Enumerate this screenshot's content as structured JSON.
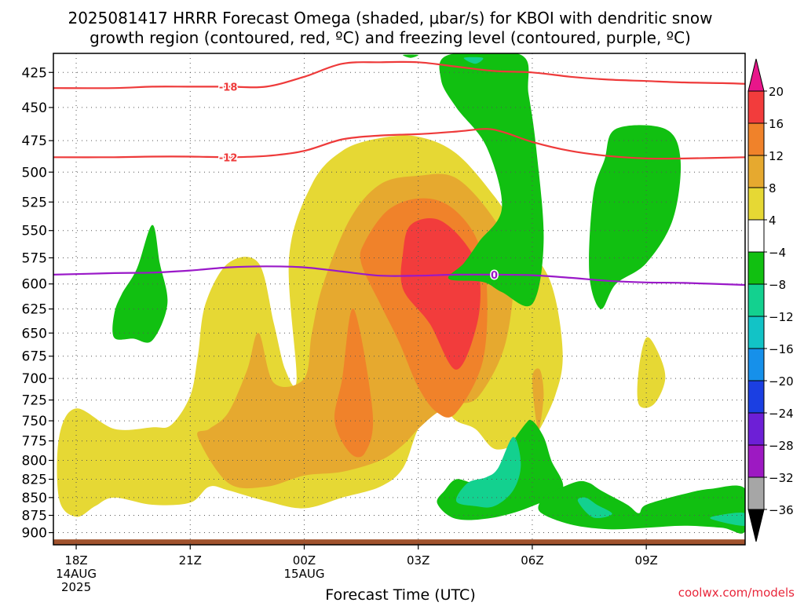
{
  "chart_data": {
    "type": "heatmap",
    "title_line1": "2025081417 HRRR Forecast Omega (shaded, μbar/s) for KBOI with dendritic snow",
    "title_line2": "growth region (contoured, red, ºC) and freezing level (contoured, purple, ºC)",
    "xlabel": "Forecast Time (UTC)",
    "credit": "coolwx.com/models",
    "x_ticks": [
      {
        "t": 0,
        "lines": [
          "18Z",
          "14AUG",
          "2025"
        ]
      },
      {
        "t": 3,
        "lines": [
          "21Z"
        ]
      },
      {
        "t": 6,
        "lines": [
          "00Z",
          "15AUG"
        ]
      },
      {
        "t": 9,
        "lines": [
          "03Z"
        ]
      },
      {
        "t": 12,
        "lines": [
          "06Z"
        ]
      },
      {
        "t": 15,
        "lines": [
          "09Z"
        ]
      }
    ],
    "xlim_hours": [
      -0.6,
      17.6
    ],
    "y_ticks": [
      "425",
      "450",
      "475",
      "500",
      "525",
      "550",
      "575",
      "600",
      "625",
      "650",
      "675",
      "700",
      "725",
      "750",
      "775",
      "800",
      "825",
      "850",
      "875",
      "900"
    ],
    "y_scale": "log-pressure",
    "ylim_hPa": [
      412,
      918
    ],
    "grid": "dotted",
    "colorbar": {
      "labels": [
        "20",
        "16",
        "12",
        "8",
        "4",
        "−4",
        "−8",
        "−12",
        "−16",
        "−20",
        "−24",
        "−28",
        "−32",
        "−36"
      ],
      "colors": [
        "#e8168a",
        "#f23c3c",
        "#f0822a",
        "#e6a92f",
        "#e6d834",
        "#ffffff",
        "#11c011",
        "#13d18f",
        "#12c3c6",
        "#1690ea",
        "#1b3fe2",
        "#6d1fd6",
        "#9d19c2",
        "#a6a6a6",
        "#000000"
      ]
    },
    "shading_colors": {
      "w4": "#e6d834",
      "w8": "#e6a92f",
      "w12": "#f0822a",
      "w16": "#f23c3c",
      "g4": "#11c011",
      "g8": "#13d18f",
      "ground": "#a0522d"
    },
    "contour_colors": {
      "dgz": "#ee3a3a",
      "freezing": "#9a19c8"
    },
    "dgz_contours": [
      {
        "label": "-18",
        "label_t": 4.0,
        "points": [
          [
            -0.6,
            436
          ],
          [
            1,
            436
          ],
          [
            2,
            435
          ],
          [
            3,
            435
          ],
          [
            4,
            435
          ],
          [
            5,
            435
          ],
          [
            6,
            428
          ],
          [
            7,
            419
          ],
          [
            8,
            418
          ],
          [
            9,
            418
          ],
          [
            10,
            421
          ],
          [
            11,
            424
          ],
          [
            12,
            425
          ],
          [
            13,
            428
          ],
          [
            14,
            430
          ],
          [
            15,
            431
          ],
          [
            16,
            432
          ],
          [
            17,
            432.5
          ],
          [
            17.6,
            433
          ]
        ]
      },
      {
        "label": "-12",
        "label_t": 4.0,
        "points": [
          [
            -0.6,
            488
          ],
          [
            1,
            488
          ],
          [
            2,
            487.5
          ],
          [
            3,
            487.5
          ],
          [
            4,
            488
          ],
          [
            5,
            487
          ],
          [
            6,
            483
          ],
          [
            7,
            474
          ],
          [
            8,
            471
          ],
          [
            9,
            470
          ],
          [
            10,
            468
          ],
          [
            10.8,
            466
          ],
          [
            11.3,
            469
          ],
          [
            12,
            476
          ],
          [
            13,
            483
          ],
          [
            14,
            487
          ],
          [
            15,
            489
          ],
          [
            16,
            489
          ],
          [
            17.6,
            488
          ]
        ]
      }
    ],
    "freezing_contour": {
      "label": "0",
      "label_t": 11.0,
      "points": [
        [
          -0.6,
          591
        ],
        [
          1,
          589.5
        ],
        [
          2,
          589
        ],
        [
          3,
          587
        ],
        [
          4,
          584
        ],
        [
          5,
          583
        ],
        [
          6,
          584
        ],
        [
          7,
          588
        ],
        [
          8,
          592
        ],
        [
          9,
          592
        ],
        [
          10,
          591
        ],
        [
          11,
          591
        ],
        [
          12,
          591.5
        ],
        [
          13,
          594
        ],
        [
          14,
          597
        ],
        [
          15,
          598.5
        ],
        [
          16,
          599
        ],
        [
          17.6,
          601
        ]
      ]
    },
    "omega_regions": [
      {
        "level": "w4",
        "points": [
          [
            -0.45,
            852
          ],
          [
            0,
            877
          ],
          [
            0.5,
            862
          ],
          [
            1,
            850
          ],
          [
            2,
            860
          ],
          [
            3,
            857
          ],
          [
            3.5,
            835
          ],
          [
            4,
            840
          ],
          [
            5,
            855
          ],
          [
            6,
            865
          ],
          [
            7,
            850
          ],
          [
            8,
            835
          ],
          [
            8.6,
            810
          ],
          [
            9,
            760
          ],
          [
            9.5,
            730
          ],
          [
            10,
            750
          ],
          [
            10.5,
            760
          ],
          [
            11,
            785
          ],
          [
            11.6,
            780
          ],
          [
            12,
            775
          ],
          [
            12.6,
            720
          ],
          [
            12.8,
            670
          ],
          [
            12.5,
            600
          ],
          [
            11.8,
            560
          ],
          [
            11,
            520
          ],
          [
            10,
            485
          ],
          [
            9,
            472
          ],
          [
            8,
            473
          ],
          [
            7,
            483
          ],
          [
            6.2,
            510
          ],
          [
            5.6,
            575
          ],
          [
            5.8,
            700
          ],
          [
            5.5,
            690
          ],
          [
            5.2,
            640
          ],
          [
            4.8,
            580
          ],
          [
            4,
            580
          ],
          [
            3.4,
            620
          ],
          [
            3.2,
            675
          ],
          [
            3,
            720
          ],
          [
            2.5,
            755
          ],
          [
            2,
            758
          ],
          [
            1,
            760
          ],
          [
            0,
            735
          ],
          [
            -0.45,
            770
          ]
        ]
      },
      {
        "level": "w8",
        "points": [
          [
            3.2,
            770
          ],
          [
            4,
            830
          ],
          [
            5,
            835
          ],
          [
            6,
            820
          ],
          [
            7,
            815
          ],
          [
            8,
            800
          ],
          [
            8.6,
            780
          ],
          [
            9,
            760
          ],
          [
            9.5,
            740
          ],
          [
            10,
            730
          ],
          [
            10.6,
            720
          ],
          [
            11.3,
            660
          ],
          [
            11.5,
            580
          ],
          [
            11.0,
            540
          ],
          [
            10,
            505
          ],
          [
            9,
            503
          ],
          [
            8,
            510
          ],
          [
            7.2,
            540
          ],
          [
            6.5,
            600
          ],
          [
            6.2,
            650
          ],
          [
            6,
            700
          ],
          [
            5.2,
            705
          ],
          [
            4.8,
            650
          ],
          [
            4.5,
            690
          ],
          [
            4,
            740
          ],
          [
            3.5,
            760
          ]
        ]
      },
      {
        "level": "w8",
        "points": [
          [
            12,
            700
          ],
          [
            12.15,
            760
          ],
          [
            12.3,
            720
          ],
          [
            12.2,
            690
          ]
        ]
      },
      {
        "level": "w12",
        "points": [
          [
            7.2,
            790
          ],
          [
            7.6,
            790
          ],
          [
            7.8,
            740
          ],
          [
            7.3,
            625
          ],
          [
            7.0,
            700
          ],
          [
            6.8,
            750
          ]
        ]
      },
      {
        "level": "w12",
        "points": [
          [
            7.5,
            580
          ],
          [
            8,
            620
          ],
          [
            8.5,
            660
          ],
          [
            9,
            710
          ],
          [
            9.5,
            740
          ],
          [
            10,
            740
          ],
          [
            10.7,
            680
          ],
          [
            10.8,
            600
          ],
          [
            10.5,
            555
          ],
          [
            9.8,
            528
          ],
          [
            9,
            522
          ],
          [
            8.2,
            532
          ],
          [
            7.6,
            560
          ]
        ]
      },
      {
        "level": "w16",
        "points": [
          [
            8.6,
            605
          ],
          [
            9.3,
            640
          ],
          [
            10,
            690
          ],
          [
            10.55,
            640
          ],
          [
            10.6,
            590
          ],
          [
            10.2,
            560
          ],
          [
            9.5,
            540
          ],
          [
            8.8,
            545
          ],
          [
            8.6,
            570
          ]
        ]
      },
      {
        "level": "w4",
        "points": [
          [
            14.8,
            730
          ],
          [
            15.2,
            730
          ],
          [
            15.5,
            700
          ],
          [
            15.3,
            670
          ],
          [
            15.0,
            655
          ],
          [
            14.8,
            690
          ]
        ]
      },
      {
        "level": "g4",
        "points": [
          [
            1,
            655
          ],
          [
            1.5,
            656
          ],
          [
            2,
            658
          ],
          [
            2.4,
            620
          ],
          [
            2.2,
            580
          ],
          [
            2,
            545
          ],
          [
            1.6,
            585
          ],
          [
            1.2,
            610
          ],
          [
            1,
            630
          ]
        ]
      },
      {
        "level": "g4",
        "points": [
          [
            9.8,
            595
          ],
          [
            10.7,
            598
          ],
          [
            11.2,
            608
          ],
          [
            12,
            620
          ],
          [
            12.3,
            560
          ],
          [
            12.1,
            480
          ],
          [
            11.9,
            440
          ],
          [
            11.7,
            413
          ],
          [
            9.8,
            413
          ],
          [
            9.6,
            430
          ],
          [
            10,
            450
          ],
          [
            10.8,
            480
          ],
          [
            11.2,
            530
          ],
          [
            10.6,
            560
          ],
          [
            10.2,
            580
          ]
        ]
      },
      {
        "level": "g8",
        "points": [
          [
            10.2,
            415
          ],
          [
            10.5,
            419
          ],
          [
            10.7,
            415
          ]
        ]
      },
      {
        "level": "g4",
        "points": [
          [
            8.8,
            415
          ],
          [
            9.0,
            413
          ],
          [
            8.6,
            413
          ]
        ]
      },
      {
        "level": "g4",
        "points": [
          [
            14.2,
            466
          ],
          [
            15.5,
            466
          ],
          [
            15.9,
            490
          ],
          [
            15.7,
            540
          ],
          [
            15.0,
            580
          ],
          [
            14.2,
            600
          ],
          [
            13.8,
            625
          ],
          [
            13.5,
            590
          ],
          [
            13.6,
            520
          ],
          [
            13.9,
            490
          ]
        ]
      },
      {
        "level": "g4",
        "points": [
          [
            9.5,
            858
          ],
          [
            10,
            880
          ],
          [
            11,
            878
          ],
          [
            12,
            862
          ],
          [
            12.8,
            838
          ],
          [
            12.5,
            800
          ],
          [
            12.3,
            770
          ],
          [
            12.0,
            750
          ],
          [
            11.8,
            755
          ],
          [
            11.3,
            790
          ],
          [
            11,
            820
          ],
          [
            10.5,
            830
          ],
          [
            10.0,
            825
          ],
          [
            9.7,
            840
          ]
        ]
      },
      {
        "level": "g8",
        "points": [
          [
            10,
            855
          ],
          [
            10.5,
            862
          ],
          [
            11,
            862
          ],
          [
            11.5,
            840
          ],
          [
            11.7,
            805
          ],
          [
            11.5,
            770
          ],
          [
            11.1,
            810
          ],
          [
            10.8,
            822
          ],
          [
            10.3,
            830
          ]
        ]
      },
      {
        "level": "g4",
        "points": [
          [
            12.2,
            870
          ],
          [
            13,
            888
          ],
          [
            14,
            895
          ],
          [
            15,
            893
          ],
          [
            16,
            890
          ],
          [
            17,
            893
          ],
          [
            17.6,
            898
          ],
          [
            17.6,
            838
          ],
          [
            16.7,
            838
          ],
          [
            16,
            845
          ],
          [
            15,
            860
          ],
          [
            14.8,
            872
          ],
          [
            14.5,
            860
          ],
          [
            13.8,
            840
          ],
          [
            13.5,
            830
          ],
          [
            13.2,
            828
          ],
          [
            12.7,
            838
          ],
          [
            12.3,
            850
          ]
        ]
      },
      {
        "level": "g8",
        "points": [
          [
            13.2,
            855
          ],
          [
            13.6,
            878
          ],
          [
            14.1,
            873
          ],
          [
            13.7,
            860
          ],
          [
            13.4,
            850
          ]
        ]
      },
      {
        "level": "g8",
        "points": [
          [
            16.7,
            880
          ],
          [
            17.6,
            890
          ],
          [
            17.6,
            872
          ],
          [
            17.0,
            874
          ]
        ]
      }
    ],
    "ground_band_hPa": [
      910,
      918
    ]
  }
}
